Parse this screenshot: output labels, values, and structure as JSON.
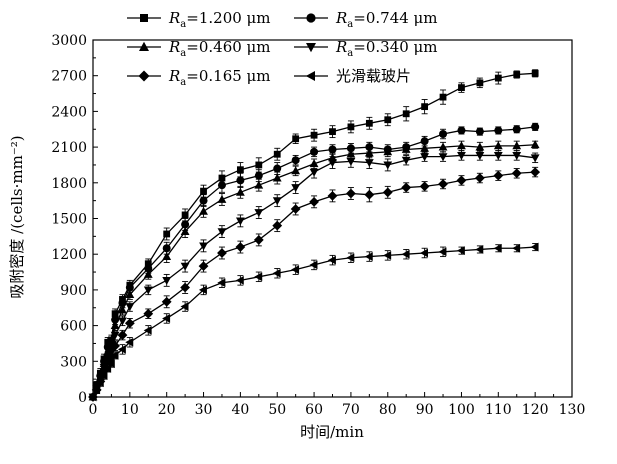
{
  "chart_data": {
    "type": "line",
    "title": "",
    "xlabel": "时间/min",
    "ylabel": "吸附密度 /(cells·mm⁻²)",
    "xlim": [
      0,
      130
    ],
    "ylim": [
      0,
      3000
    ],
    "xticks": [
      0,
      10,
      20,
      30,
      40,
      50,
      60,
      70,
      80,
      90,
      100,
      110,
      120,
      130
    ],
    "yticks": [
      0,
      300,
      600,
      900,
      1200,
      1500,
      1800,
      2100,
      2400,
      2700,
      3000
    ],
    "grid": false,
    "legend_position": "top-left, inside",
    "x": [
      0,
      1,
      2,
      3,
      4,
      5,
      6,
      8,
      10,
      15,
      20,
      25,
      30,
      35,
      40,
      45,
      50,
      55,
      60,
      65,
      70,
      75,
      80,
      85,
      90,
      95,
      100,
      105,
      110,
      115,
      120
    ],
    "series": [
      {
        "name": "Ra=1.200 μm",
        "legend_prefix": "R",
        "legend_sub": "a",
        "legend_value": "=1.200 μm",
        "marker": "square",
        "values": [
          0,
          100,
          200,
          320,
          460,
          480,
          700,
          820,
          940,
          1120,
          1370,
          1530,
          1730,
          1840,
          1910,
          1950,
          2040,
          2170,
          2200,
          2230,
          2270,
          2300,
          2330,
          2380,
          2440,
          2520,
          2600,
          2640,
          2680,
          2710,
          2720
        ],
        "error": [
          0,
          30,
          40,
          40,
          40,
          40,
          40,
          40,
          40,
          40,
          50,
          50,
          50,
          60,
          60,
          60,
          50,
          40,
          50,
          50,
          50,
          50,
          50,
          60,
          60,
          60,
          40,
          40,
          50,
          30,
          30
        ]
      },
      {
        "name": "Ra=0.744 μm",
        "legend_prefix": "R",
        "legend_sub": "a",
        "legend_value": "=0.744 μm",
        "marker": "circle",
        "values": [
          0,
          90,
          180,
          300,
          420,
          460,
          650,
          790,
          920,
          1080,
          1250,
          1450,
          1650,
          1780,
          1820,
          1860,
          1920,
          1990,
          2060,
          2080,
          2090,
          2100,
          2080,
          2100,
          2150,
          2210,
          2240,
          2230,
          2240,
          2250,
          2270
        ],
        "error": [
          0,
          30,
          30,
          40,
          40,
          40,
          40,
          40,
          40,
          40,
          50,
          50,
          50,
          60,
          60,
          50,
          50,
          40,
          40,
          40,
          40,
          40,
          40,
          40,
          40,
          40,
          30,
          30,
          30,
          30,
          30
        ]
      },
      {
        "name": "Ra=0.460 μm",
        "legend_prefix": "R",
        "legend_sub": "a",
        "legend_value": "=0.460 μm",
        "marker": "triangle-up",
        "values": [
          0,
          80,
          170,
          280,
          380,
          430,
          600,
          730,
          860,
          1030,
          1180,
          1390,
          1560,
          1660,
          1720,
          1780,
          1840,
          1900,
          1960,
          2010,
          2040,
          2050,
          2060,
          2080,
          2090,
          2100,
          2110,
          2100,
          2110,
          2110,
          2120
        ],
        "error": [
          0,
          30,
          30,
          40,
          40,
          40,
          40,
          40,
          40,
          40,
          50,
          50,
          50,
          50,
          50,
          50,
          50,
          40,
          40,
          40,
          40,
          40,
          40,
          40,
          40,
          40,
          40,
          40,
          40,
          40,
          30
        ]
      },
      {
        "name": "Ra=0.340 μm",
        "legend_prefix": "R",
        "legend_sub": "a",
        "legend_value": "=0.340 μm",
        "marker": "triangle-down",
        "values": [
          0,
          70,
          150,
          250,
          320,
          380,
          520,
          640,
          760,
          900,
          980,
          1100,
          1270,
          1390,
          1480,
          1550,
          1650,
          1760,
          1890,
          1970,
          1980,
          1970,
          1950,
          1990,
          2020,
          2020,
          2030,
          2030,
          2030,
          2030,
          2010
        ],
        "error": [
          0,
          30,
          30,
          30,
          30,
          30,
          40,
          40,
          40,
          40,
          50,
          50,
          50,
          50,
          50,
          50,
          50,
          50,
          50,
          50,
          50,
          50,
          50,
          40,
          40,
          40,
          40,
          40,
          40,
          40,
          40
        ]
      },
      {
        "name": "Ra=0.165 μm",
        "legend_prefix": "R",
        "legend_sub": "a",
        "legend_value": "=0.165 μm",
        "marker": "diamond",
        "values": [
          0,
          60,
          130,
          220,
          300,
          340,
          430,
          520,
          620,
          700,
          800,
          920,
          1100,
          1210,
          1260,
          1320,
          1440,
          1580,
          1640,
          1690,
          1710,
          1700,
          1720,
          1760,
          1770,
          1790,
          1820,
          1840,
          1860,
          1880,
          1890
        ],
        "error": [
          0,
          30,
          30,
          30,
          30,
          30,
          40,
          40,
          40,
          40,
          50,
          50,
          50,
          50,
          50,
          50,
          50,
          50,
          50,
          50,
          50,
          60,
          50,
          40,
          40,
          40,
          40,
          40,
          40,
          40,
          40
        ]
      },
      {
        "name": "光滑载玻片",
        "legend_prefix": "光滑载玻片",
        "legend_sub": "",
        "legend_value": "",
        "marker": "triangle-left",
        "values": [
          0,
          60,
          120,
          180,
          240,
          280,
          350,
          400,
          460,
          560,
          660,
          760,
          900,
          960,
          980,
          1010,
          1040,
          1070,
          1110,
          1150,
          1170,
          1180,
          1190,
          1200,
          1210,
          1220,
          1230,
          1240,
          1250,
          1250,
          1260
        ],
        "error": [
          0,
          30,
          30,
          30,
          30,
          30,
          30,
          40,
          40,
          40,
          40,
          40,
          40,
          40,
          40,
          40,
          40,
          40,
          40,
          40,
          40,
          40,
          40,
          40,
          40,
          40,
          30,
          30,
          30,
          30,
          30
        ]
      }
    ]
  }
}
